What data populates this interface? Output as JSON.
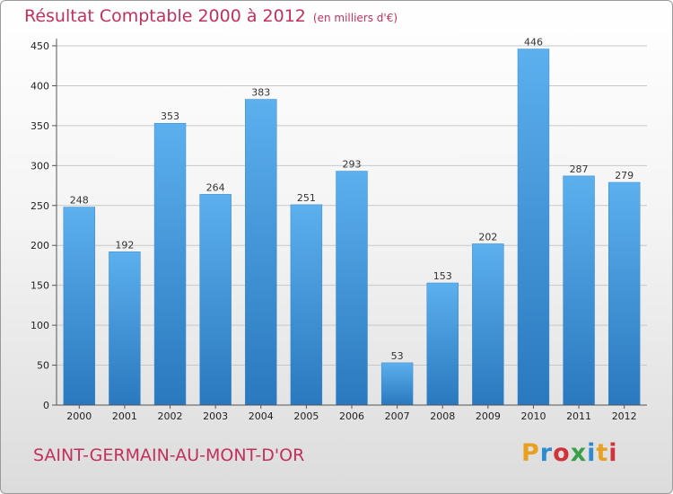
{
  "title": "Résultat Comptable 2000 à 2012",
  "subtitle": "(en milliers d'€)",
  "location": "SAINT-GERMAIN-AU-MONT-D'OR",
  "logo": {
    "letters": [
      "P",
      "r",
      "o",
      "x",
      "i",
      "t",
      "i"
    ],
    "colors": [
      "#e8a020",
      "#2e8bcf",
      "#d0343a",
      "#3aa04a",
      "#2e8bcf",
      "#e8a020",
      "#d0343a"
    ]
  },
  "colors": {
    "bar": "#4a9de0",
    "title": "#c2305b",
    "grid": "#c8c8c8"
  },
  "chart_data": {
    "type": "bar",
    "title": "Résultat Comptable 2000 à 2012",
    "subtitle": "(en milliers d'€)",
    "xlabel": "",
    "ylabel": "",
    "ylim": [
      0,
      450
    ],
    "yticks": [
      0,
      50,
      100,
      150,
      200,
      250,
      300,
      350,
      400,
      450
    ],
    "grid": true,
    "categories": [
      "2000",
      "2001",
      "2002",
      "2003",
      "2004",
      "2005",
      "2006",
      "2007",
      "2008",
      "2009",
      "2010",
      "2011",
      "2012"
    ],
    "values": [
      248,
      192,
      353,
      264,
      383,
      251,
      293,
      53,
      153,
      202,
      446,
      287,
      279
    ]
  }
}
